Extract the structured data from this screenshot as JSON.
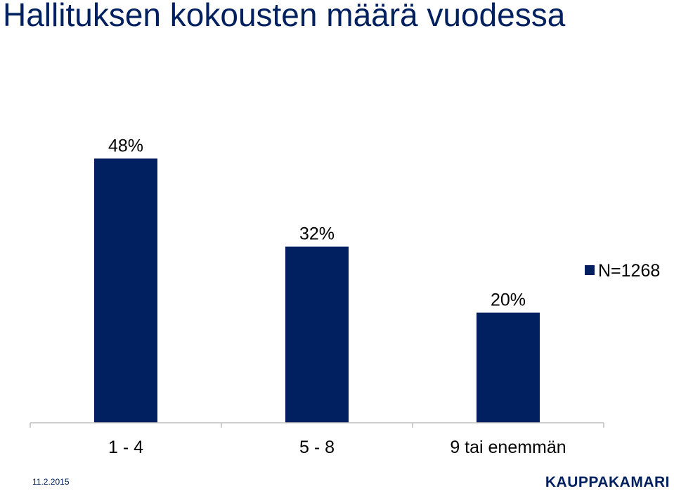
{
  "chart_data": {
    "type": "bar",
    "title": "Hallituksen kokousten määrä vuodessa",
    "categories": [
      "1 - 4",
      "5 - 8",
      "9 tai enemmän"
    ],
    "series": [
      {
        "name": "N=1268",
        "values": [
          48,
          32,
          20
        ]
      }
    ],
    "data_labels": [
      "48%",
      "32%",
      "20%"
    ],
    "ylim": [
      0,
      60
    ],
    "grid": false,
    "legend": "right",
    "colors": {
      "bar": "#002060",
      "axis": "#bfbfbf",
      "text": "#000000"
    }
  },
  "footer": {
    "date": "11.2.2015",
    "brand": "KAUPPAKAMARI"
  }
}
